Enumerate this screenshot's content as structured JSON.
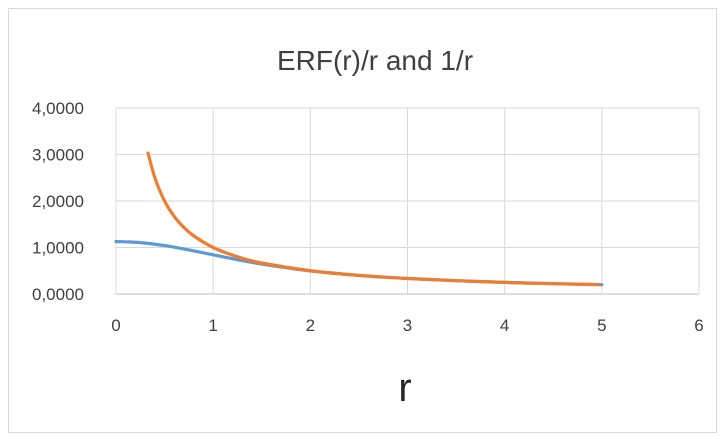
{
  "chart_data": {
    "type": "line",
    "title": "ERF(r)/r and 1/r",
    "xlabel": "r",
    "ylabel": "",
    "xlim": [
      0,
      6
    ],
    "ylim": [
      0,
      4
    ],
    "x_ticks": [
      "0",
      "1",
      "2",
      "3",
      "4",
      "5",
      "6"
    ],
    "y_ticks": [
      "0,0000",
      "1,0000",
      "2,0000",
      "3,0000",
      "4,0000"
    ],
    "grid": true,
    "legend": "none",
    "series": [
      {
        "color": "#5b9bd5",
        "x": [
          0,
          0.25,
          0.5,
          0.75,
          1,
          1.25,
          1.5,
          1.75,
          2,
          2.5,
          3,
          3.5,
          4,
          4.5,
          5
        ],
        "values": [
          1.1284,
          1.1054,
          1.041,
          0.9475,
          0.8427,
          0.7389,
          0.6439,
          0.5653,
          0.4977,
          0.3998,
          0.3333,
          0.2857,
          0.25,
          0.2222,
          0.2
        ]
      },
      {
        "color": "#ed7d31",
        "x": [
          0.33,
          0.4,
          0.5,
          0.6,
          0.7,
          0.8,
          1,
          1.25,
          1.5,
          2,
          2.5,
          3,
          3.5,
          4,
          4.5,
          4.97
        ],
        "values": [
          3.0303,
          2.5,
          2.0,
          1.6667,
          1.4286,
          1.25,
          1.0,
          0.8,
          0.6667,
          0.5,
          0.4,
          0.3333,
          0.2857,
          0.25,
          0.2222,
          0.2012
        ]
      }
    ]
  }
}
